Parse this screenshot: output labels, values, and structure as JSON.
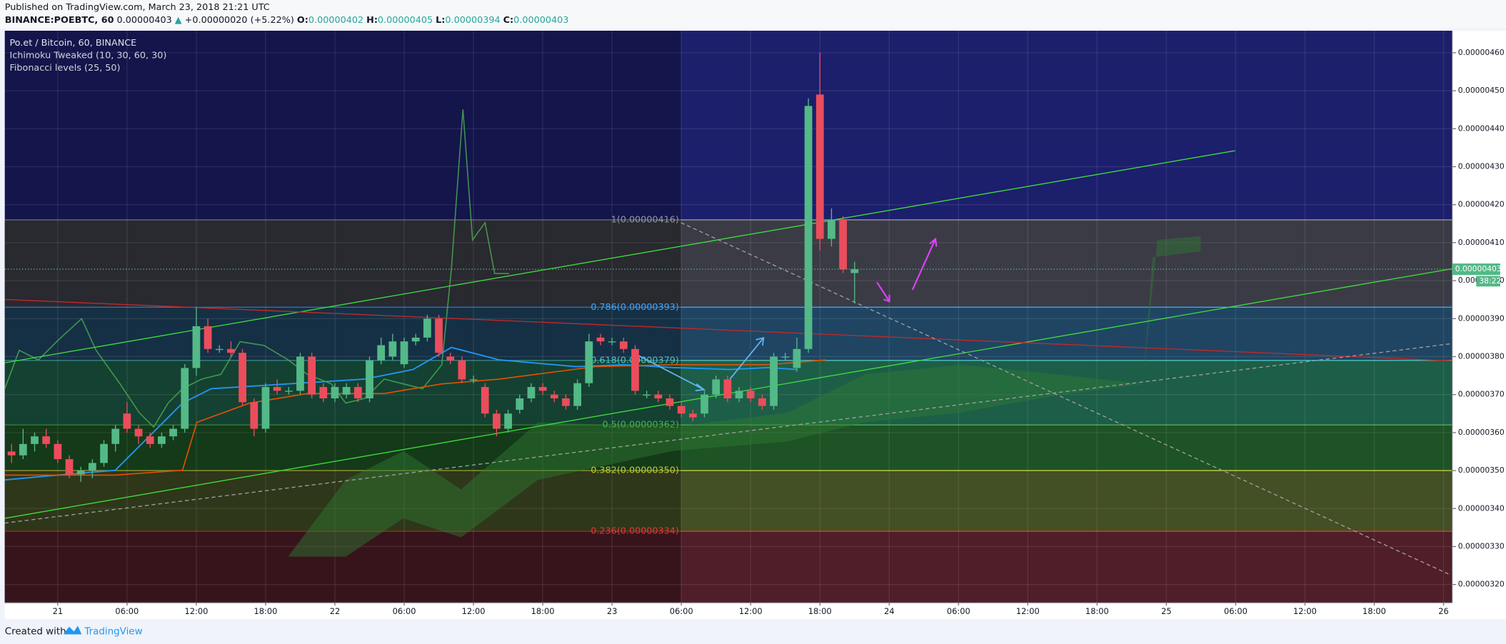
{
  "header": {
    "published": "Published on TradingView.com, March 23, 2018 21:21 UTC",
    "symbol": "BINANCE:POEBTC, 60",
    "last": "0.00000403",
    "arrow": "▲",
    "change": "+0.00000020 (+5.22%)",
    "ohlc": [
      {
        "label": "O:",
        "value": "0.00000402"
      },
      {
        "label": "H:",
        "value": "0.00000405"
      },
      {
        "label": "L:",
        "value": "0.00000394"
      },
      {
        "label": "C:",
        "value": "0.00000403"
      }
    ]
  },
  "legend": [
    "Po.et / Bitcoin, 60, BINANCE",
    "Ichimoku Tweaked (10, 30, 60, 30)",
    "Fibonacci levels (25, 50)"
  ],
  "footer": {
    "created": "Created with",
    "brand": "TradingView"
  },
  "chart_data": {
    "type": "candlestick",
    "up_color": "#53b987",
    "down_color": "#eb4d5c",
    "grid": true,
    "price_tag": "0.00000403",
    "countdown": "38:22",
    "xlim": [
      "2018-03-20T19:25",
      "2018-03-26T00:45"
    ],
    "ylim": [
      3.152e-06,
      4.658e-06
    ],
    "yticks": [
      {
        "value": 3.2e-06,
        "label": "0.00000320"
      },
      {
        "value": 3.3e-06,
        "label": "0.00000330"
      },
      {
        "value": 3.4e-06,
        "label": "0.00000340"
      },
      {
        "value": 3.5e-06,
        "label": "0.00000350"
      },
      {
        "value": 3.6e-06,
        "label": "0.00000360"
      },
      {
        "value": 3.7e-06,
        "label": "0.00000370"
      },
      {
        "value": 3.8e-06,
        "label": "0.00000380"
      },
      {
        "value": 3.9e-06,
        "label": "0.00000390"
      },
      {
        "value": 4e-06,
        "label": "0.00000400"
      },
      {
        "value": 4.1e-06,
        "label": "0.00000410"
      },
      {
        "value": 4.2e-06,
        "label": "0.00000420"
      },
      {
        "value": 4.3e-06,
        "label": "0.00000430"
      },
      {
        "value": 4.4e-06,
        "label": "0.00000440"
      },
      {
        "value": 4.5e-06,
        "label": "0.00000450"
      },
      {
        "value": 4.6e-06,
        "label": "0.00000460"
      }
    ],
    "xticks": [
      {
        "value": "2018-03-21T00:00",
        "label": "21"
      },
      {
        "value": "2018-03-21T06:00",
        "label": "06:00"
      },
      {
        "value": "2018-03-21T12:00",
        "label": "12:00"
      },
      {
        "value": "2018-03-21T18:00",
        "label": "18:00"
      },
      {
        "value": "2018-03-22T00:00",
        "label": "22"
      },
      {
        "value": "2018-03-22T06:00",
        "label": "06:00"
      },
      {
        "value": "2018-03-22T12:00",
        "label": "12:00"
      },
      {
        "value": "2018-03-22T18:00",
        "label": "18:00"
      },
      {
        "value": "2018-03-23T00:00",
        "label": "23"
      },
      {
        "value": "2018-03-23T06:00",
        "label": "06:00"
      },
      {
        "value": "2018-03-23T12:00",
        "label": "12:00"
      },
      {
        "value": "2018-03-23T18:00",
        "label": "18:00"
      },
      {
        "value": "2018-03-24T00:00",
        "label": "24"
      },
      {
        "value": "2018-03-24T06:00",
        "label": "06:00"
      },
      {
        "value": "2018-03-24T12:00",
        "label": "12:00"
      },
      {
        "value": "2018-03-24T18:00",
        "label": "18:00"
      },
      {
        "value": "2018-03-25T00:00",
        "label": "25"
      },
      {
        "value": "2018-03-25T06:00",
        "label": "06:00"
      },
      {
        "value": "2018-03-25T12:00",
        "label": "12:00"
      },
      {
        "value": "2018-03-25T18:00",
        "label": "18:00"
      },
      {
        "value": "2018-03-26T00:00",
        "label": "26"
      }
    ],
    "fib_levels": [
      {
        "label": "1(0.00000416)",
        "value": 4.16e-06,
        "color": "#9598a1",
        "fill": "#3b3b45"
      },
      {
        "label": "0.786(0.00000393)",
        "value": 3.93e-06,
        "color": "#42a5f5",
        "fill": "#1f4563"
      },
      {
        "label": "0.618(0.00000379)",
        "value": 3.79e-06,
        "color": "#4fc3c0",
        "fill": "#1d5e48"
      },
      {
        "label": "0.5(0.00000362)",
        "value": 3.62e-06,
        "color": "#4caf50",
        "fill": "#1e5325"
      },
      {
        "label": "0.382(0.00000350)",
        "value": 3.5e-06,
        "color": "#c0ca33",
        "fill": "#434f24"
      },
      {
        "label": "0.236(0.00000334)",
        "value": 3.34e-06,
        "color": "#e53935",
        "fill": "#4f1e28"
      }
    ],
    "x": [
      "2018-03-20T20:00",
      "2018-03-20T21:00",
      "2018-03-20T22:00",
      "2018-03-20T23:00",
      "2018-03-21T00:00",
      "2018-03-21T01:00",
      "2018-03-21T02:00",
      "2018-03-21T03:00",
      "2018-03-21T04:00",
      "2018-03-21T05:00",
      "2018-03-21T06:00",
      "2018-03-21T07:00",
      "2018-03-21T08:00",
      "2018-03-21T09:00",
      "2018-03-21T10:00",
      "2018-03-21T11:00",
      "2018-03-21T12:00",
      "2018-03-21T13:00",
      "2018-03-21T14:00",
      "2018-03-21T15:00",
      "2018-03-21T16:00",
      "2018-03-21T17:00",
      "2018-03-21T18:00",
      "2018-03-21T19:00",
      "2018-03-21T20:00",
      "2018-03-21T21:00",
      "2018-03-21T22:00",
      "2018-03-21T23:00",
      "2018-03-22T00:00",
      "2018-03-22T01:00",
      "2018-03-22T02:00",
      "2018-03-22T03:00",
      "2018-03-22T04:00",
      "2018-03-22T05:00",
      "2018-03-22T06:00",
      "2018-03-22T07:00",
      "2018-03-22T08:00",
      "2018-03-22T09:00",
      "2018-03-22T10:00",
      "2018-03-22T11:00",
      "2018-03-22T12:00",
      "2018-03-22T13:00",
      "2018-03-22T14:00",
      "2018-03-22T15:00",
      "2018-03-22T16:00",
      "2018-03-22T17:00",
      "2018-03-22T18:00",
      "2018-03-22T19:00",
      "2018-03-22T20:00",
      "2018-03-22T21:00",
      "2018-03-22T22:00",
      "2018-03-22T23:00",
      "2018-03-23T00:00",
      "2018-03-23T01:00",
      "2018-03-23T02:00",
      "2018-03-23T03:00",
      "2018-03-23T04:00",
      "2018-03-23T05:00",
      "2018-03-23T06:00",
      "2018-03-23T07:00",
      "2018-03-23T08:00",
      "2018-03-23T09:00",
      "2018-03-23T10:00",
      "2018-03-23T11:00",
      "2018-03-23T12:00",
      "2018-03-23T13:00",
      "2018-03-23T14:00",
      "2018-03-23T15:00",
      "2018-03-23T16:00",
      "2018-03-23T17:00",
      "2018-03-23T18:00",
      "2018-03-23T19:00",
      "2018-03-23T20:00",
      "2018-03-23T21:00"
    ],
    "open": [
      3.55e-06,
      3.54e-06,
      3.57e-06,
      3.59e-06,
      3.57e-06,
      3.53e-06,
      3.49e-06,
      3.5e-06,
      3.52e-06,
      3.57e-06,
      3.65e-06,
      3.61e-06,
      3.59e-06,
      3.57e-06,
      3.59e-06,
      3.61e-06,
      3.77e-06,
      3.88e-06,
      3.82e-06,
      3.82e-06,
      3.81e-06,
      3.68e-06,
      3.61e-06,
      3.72e-06,
      3.71e-06,
      3.71e-06,
      3.8e-06,
      3.72e-06,
      3.69e-06,
      3.7e-06,
      3.72e-06,
      3.69e-06,
      3.79e-06,
      3.8e-06,
      3.78e-06,
      3.84e-06,
      3.85e-06,
      3.9e-06,
      3.8e-06,
      3.79e-06,
      3.74e-06,
      3.72e-06,
      3.65e-06,
      3.61e-06,
      3.66e-06,
      3.69e-06,
      3.72e-06,
      3.7e-06,
      3.69e-06,
      3.67e-06,
      3.73e-06,
      3.85e-06,
      3.84e-06,
      3.84e-06,
      3.82e-06,
      3.7e-06,
      3.7e-06,
      3.69e-06,
      3.67e-06,
      3.65e-06,
      3.65e-06,
      3.7e-06,
      3.74e-06,
      3.69e-06,
      3.71e-06,
      3.69e-06,
      3.67e-06,
      3.8e-06,
      3.77e-06,
      3.82e-06,
      4.49e-06,
      4.11e-06,
      4.16e-06,
      4.02e-06
    ],
    "high": [
      3.57e-06,
      3.61e-06,
      3.6e-06,
      3.61e-06,
      3.58e-06,
      3.54e-06,
      3.51e-06,
      3.53e-06,
      3.58e-06,
      3.62e-06,
      3.68e-06,
      3.62e-06,
      3.6e-06,
      3.6e-06,
      3.62e-06,
      3.78e-06,
      3.93e-06,
      3.9e-06,
      3.83e-06,
      3.84e-06,
      3.82e-06,
      3.69e-06,
      3.73e-06,
      3.74e-06,
      3.72e-06,
      3.81e-06,
      3.81e-06,
      3.73e-06,
      3.73e-06,
      3.73e-06,
      3.73e-06,
      3.8e-06,
      3.85e-06,
      3.86e-06,
      3.85e-06,
      3.86e-06,
      3.91e-06,
      3.91e-06,
      3.81e-06,
      3.8e-06,
      3.75e-06,
      3.73e-06,
      3.66e-06,
      3.66e-06,
      3.7e-06,
      3.73e-06,
      3.73e-06,
      3.71e-06,
      3.7e-06,
      3.74e-06,
      3.86e-06,
      3.86e-06,
      3.85e-06,
      3.85e-06,
      3.83e-06,
      3.71e-06,
      3.71e-06,
      3.7e-06,
      3.68e-06,
      3.66e-06,
      3.71e-06,
      3.75e-06,
      3.75e-06,
      3.72e-06,
      3.72e-06,
      3.7e-06,
      3.81e-06,
      3.81e-06,
      3.85e-06,
      4.48e-06,
      4.6e-06,
      4.19e-06,
      4.17e-06,
      4.05e-06
    ],
    "low": [
      3.52e-06,
      3.53e-06,
      3.55e-06,
      3.56e-06,
      3.52e-06,
      3.48e-06,
      3.47e-06,
      3.48e-06,
      3.51e-06,
      3.55e-06,
      3.6e-06,
      3.57e-06,
      3.56e-06,
      3.56e-06,
      3.58e-06,
      3.6e-06,
      3.75e-06,
      3.81e-06,
      3.81e-06,
      3.8e-06,
      3.67e-06,
      3.59e-06,
      3.6e-06,
      3.7e-06,
      3.7e-06,
      3.7e-06,
      3.69e-06,
      3.68e-06,
      3.68e-06,
      3.69e-06,
      3.68e-06,
      3.68e-06,
      3.78e-06,
      3.79e-06,
      3.77e-06,
      3.83e-06,
      3.84e-06,
      3.8e-06,
      3.78e-06,
      3.73e-06,
      3.73e-06,
      3.64e-06,
      3.59e-06,
      3.6e-06,
      3.65e-06,
      3.68e-06,
      3.7e-06,
      3.68e-06,
      3.66e-06,
      3.66e-06,
      3.72e-06,
      3.83e-06,
      3.83e-06,
      3.81e-06,
      3.7e-06,
      3.69e-06,
      3.68e-06,
      3.66e-06,
      3.64e-06,
      3.63e-06,
      3.64e-06,
      3.69e-06,
      3.68e-06,
      3.68e-06,
      3.68e-06,
      3.66e-06,
      3.66e-06,
      3.79e-06,
      3.76e-06,
      3.81e-06,
      4.08e-06,
      4.09e-06,
      4.02e-06,
      3.94e-06
    ],
    "close": [
      3.54e-06,
      3.57e-06,
      3.59e-06,
      3.57e-06,
      3.53e-06,
      3.49e-06,
      3.5e-06,
      3.52e-06,
      3.57e-06,
      3.61e-06,
      3.61e-06,
      3.59e-06,
      3.57e-06,
      3.59e-06,
      3.61e-06,
      3.77e-06,
      3.88e-06,
      3.82e-06,
      3.82e-06,
      3.81e-06,
      3.68e-06,
      3.61e-06,
      3.72e-06,
      3.71e-06,
      3.71e-06,
      3.8e-06,
      3.7e-06,
      3.69e-06,
      3.72e-06,
      3.72e-06,
      3.69e-06,
      3.79e-06,
      3.83e-06,
      3.84e-06,
      3.84e-06,
      3.85e-06,
      3.9e-06,
      3.81e-06,
      3.79e-06,
      3.74e-06,
      3.74e-06,
      3.65e-06,
      3.61e-06,
      3.65e-06,
      3.69e-06,
      3.72e-06,
      3.71e-06,
      3.69e-06,
      3.67e-06,
      3.73e-06,
      3.84e-06,
      3.84e-06,
      3.84e-06,
      3.82e-06,
      3.71e-06,
      3.7e-06,
      3.69e-06,
      3.67e-06,
      3.65e-06,
      3.64e-06,
      3.7e-06,
      3.74e-06,
      3.69e-06,
      3.71e-06,
      3.69e-06,
      3.67e-06,
      3.8e-06,
      3.8e-06,
      3.82e-06,
      4.46e-06,
      4.11e-06,
      4.16e-06,
      4.03e-06,
      4.03e-06
    ]
  }
}
